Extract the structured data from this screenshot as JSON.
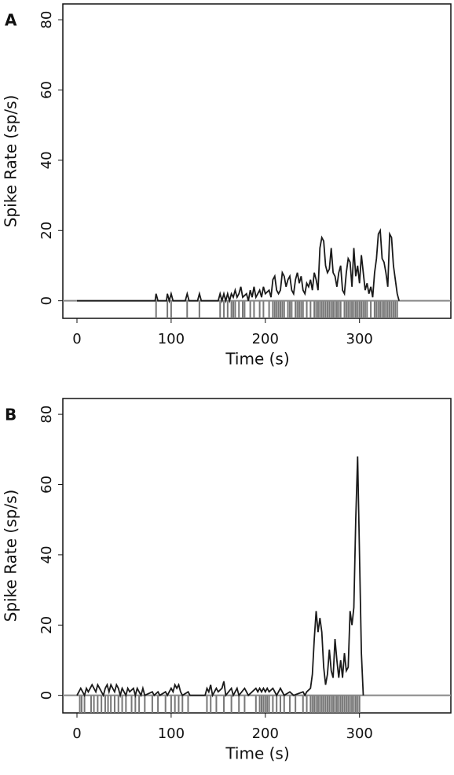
{
  "chart_data": [
    {
      "type": "line",
      "label": "A",
      "xlabel": "Time (s)",
      "ylabel": "Spike Rate (sp/s)",
      "xlim": [
        -15,
        397
      ],
      "ylim": [
        -5,
        84.5
      ],
      "xticks": [
        0,
        100,
        200,
        300
      ],
      "yticks": [
        0,
        20,
        40,
        60,
        80
      ],
      "color": "#1a1a1a",
      "spike_color": "#777777",
      "baseline_color": "#888888",
      "x": [
        0,
        83,
        84,
        86,
        95,
        96,
        98,
        100,
        102,
        115,
        117,
        119,
        128,
        130,
        132,
        150,
        152,
        154,
        156,
        158,
        160,
        162,
        164,
        166,
        168,
        170,
        172,
        174,
        176,
        180,
        182,
        184,
        186,
        188,
        190,
        194,
        196,
        198,
        200,
        204,
        206,
        208,
        210,
        212,
        214,
        216,
        218,
        220,
        222,
        224,
        226,
        228,
        230,
        232,
        234,
        236,
        238,
        240,
        242,
        244,
        246,
        248,
        250,
        252,
        254,
        256,
        258,
        260,
        262,
        264,
        266,
        268,
        270,
        272,
        274,
        276,
        278,
        280,
        282,
        284,
        286,
        288,
        290,
        292,
        294,
        296,
        298,
        300,
        302,
        304,
        306,
        308,
        310,
        312,
        314,
        316,
        318,
        320,
        322,
        324,
        326,
        328,
        330,
        332,
        334,
        336,
        338,
        340,
        342
      ],
      "values": [
        0,
        0,
        2,
        0,
        0,
        2,
        0,
        2,
        0,
        0,
        2,
        0,
        0,
        2,
        0,
        0,
        2,
        0,
        2,
        0,
        2,
        0,
        2,
        1,
        3,
        1,
        2,
        4,
        1,
        2,
        0,
        3,
        1,
        4,
        1,
        3,
        1,
        4,
        2,
        3,
        1,
        6,
        7,
        3,
        2,
        3,
        8,
        7,
        4,
        6,
        7,
        3,
        2,
        6,
        8,
        5,
        7,
        3,
        2,
        5,
        4,
        6,
        3,
        8,
        6,
        3,
        15,
        18,
        17,
        10,
        8,
        9,
        15,
        8,
        7,
        4,
        8,
        10,
        3,
        2,
        8,
        12,
        11,
        4,
        15,
        7,
        10,
        5,
        13,
        8,
        3,
        5,
        2,
        4,
        1,
        8,
        12,
        19,
        20,
        12,
        11,
        8,
        4,
        19,
        18,
        10,
        6,
        2,
        0
      ],
      "spikes": [
        84,
        96,
        100,
        117,
        130,
        152,
        156,
        160,
        164,
        166,
        168,
        172,
        176,
        178,
        184,
        188,
        194,
        198,
        204,
        208,
        210,
        212,
        214,
        216,
        218,
        220,
        224,
        226,
        228,
        232,
        234,
        236,
        238,
        240,
        244,
        248,
        252,
        254,
        256,
        258,
        260,
        262,
        264,
        266,
        268,
        270,
        272,
        274,
        276,
        278,
        280,
        284,
        286,
        288,
        290,
        292,
        294,
        296,
        298,
        300,
        302,
        304,
        306,
        308,
        312,
        316,
        318,
        320,
        322,
        324,
        326,
        328,
        330,
        332,
        334,
        336,
        338,
        340
      ]
    },
    {
      "type": "line",
      "label": "B",
      "xlabel": "Time (s)",
      "ylabel": "Spike Rate (sp/s)",
      "xlim": [
        -15,
        397
      ],
      "ylim": [
        -5,
        84.5
      ],
      "xticks": [
        0,
        100,
        200,
        300
      ],
      "yticks": [
        0,
        20,
        40,
        60,
        80
      ],
      "color": "#1a1a1a",
      "spike_color": "#777777",
      "baseline_color": "#888888",
      "x": [
        0,
        2,
        4,
        6,
        8,
        10,
        12,
        14,
        16,
        18,
        20,
        22,
        24,
        26,
        28,
        30,
        32,
        34,
        36,
        38,
        40,
        42,
        44,
        46,
        48,
        50,
        52,
        54,
        56,
        60,
        62,
        64,
        66,
        68,
        70,
        72,
        80,
        82,
        86,
        88,
        94,
        96,
        100,
        102,
        104,
        106,
        108,
        110,
        112,
        118,
        120,
        136,
        138,
        140,
        142,
        144,
        148,
        150,
        154,
        156,
        158,
        164,
        166,
        170,
        172,
        178,
        180,
        182,
        190,
        192,
        194,
        196,
        198,
        200,
        202,
        204,
        208,
        212,
        216,
        218,
        220,
        226,
        230,
        240,
        242,
        244,
        248,
        250,
        252,
        254,
        256,
        258,
        260,
        262,
        264,
        266,
        268,
        270,
        272,
        274,
        276,
        278,
        280,
        282,
        284,
        286,
        288,
        290,
        292,
        294,
        296,
        298,
        300,
        302,
        304
      ],
      "values": [
        0,
        1,
        2,
        1,
        0,
        2,
        1,
        2,
        3,
        2,
        1,
        3,
        2,
        1,
        0,
        2,
        3,
        1,
        3,
        2,
        1,
        3,
        2,
        0,
        2,
        1,
        0,
        2,
        1,
        2,
        0,
        2,
        1,
        0,
        2,
        0,
        1,
        0,
        1,
        0,
        1,
        0,
        2,
        1,
        3,
        2,
        3,
        1,
        0,
        1,
        0,
        0,
        2,
        1,
        3,
        0,
        2,
        1,
        2,
        4,
        0,
        2,
        0,
        2,
        0,
        2,
        1,
        0,
        2,
        1,
        2,
        1,
        2,
        1,
        2,
        1,
        2,
        0,
        2,
        1,
        0,
        1,
        0,
        1,
        0,
        1,
        2,
        6,
        16,
        24,
        18,
        22,
        18,
        8,
        3,
        6,
        13,
        7,
        5,
        16,
        10,
        5,
        10,
        5,
        12,
        7,
        8,
        24,
        20,
        25,
        50,
        68,
        40,
        12,
        0
      ],
      "spikes": [
        3,
        5,
        8,
        15,
        18,
        22,
        26,
        30,
        33,
        36,
        40,
        44,
        48,
        52,
        58,
        62,
        66,
        72,
        80,
        86,
        94,
        100,
        104,
        108,
        112,
        118,
        138,
        142,
        148,
        156,
        164,
        172,
        178,
        190,
        194,
        196,
        198,
        200,
        202,
        204,
        208,
        212,
        216,
        220,
        226,
        232,
        240,
        244,
        248,
        250,
        252,
        254,
        256,
        258,
        260,
        262,
        264,
        266,
        268,
        270,
        272,
        274,
        276,
        278,
        280,
        282,
        284,
        286,
        288,
        290,
        292,
        294,
        296,
        298,
        300
      ]
    }
  ]
}
